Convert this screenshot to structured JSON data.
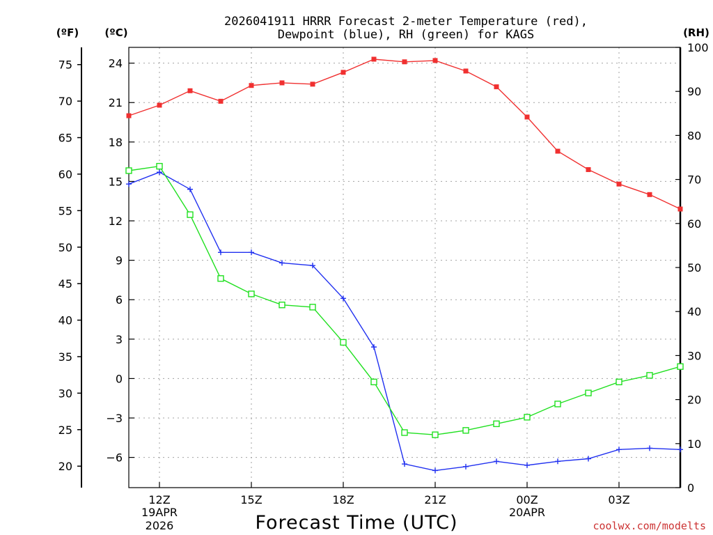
{
  "chart_data": {
    "type": "line",
    "title_line1": "2026041911 HRRR Forecast 2-meter Temperature (red),",
    "title_line2": "Dewpoint (blue), RH (green) for KAGS",
    "xlabel": "Forecast Time (UTC)",
    "watermark": "coolwx.com/modelts",
    "unit_labels": {
      "fahrenheit": "(ºF)",
      "celsius": "(ºC)",
      "rh": "(RH)"
    },
    "x_range_hours": [
      11,
      29
    ],
    "x_ticks": [
      {
        "hour": 12,
        "label": "12Z",
        "sub1": "19APR",
        "sub2": "2026"
      },
      {
        "hour": 15,
        "label": "15Z",
        "sub1": "",
        "sub2": ""
      },
      {
        "hour": 18,
        "label": "18Z",
        "sub1": "",
        "sub2": ""
      },
      {
        "hour": 21,
        "label": "21Z",
        "sub1": "",
        "sub2": ""
      },
      {
        "hour": 24,
        "label": "00Z",
        "sub1": "20APR",
        "sub2": ""
      },
      {
        "hour": 27,
        "label": "03Z",
        "sub1": "",
        "sub2": ""
      }
    ],
    "celsius_axis": {
      "range": [
        -8.3,
        25.2
      ],
      "ticks": [
        "24",
        "21",
        "18",
        "15",
        "12",
        "9",
        "6",
        "3",
        "0",
        "−3",
        "−6"
      ],
      "tick_values": [
        24,
        21,
        18,
        15,
        12,
        9,
        6,
        3,
        0,
        -3,
        -6
      ]
    },
    "fahrenheit_axis": {
      "ticks": [
        "75",
        "70",
        "65",
        "60",
        "55",
        "50",
        "45",
        "40",
        "35",
        "30",
        "25",
        "20"
      ],
      "tick_values": [
        75,
        70,
        65,
        60,
        55,
        50,
        45,
        40,
        35,
        30,
        25,
        20
      ]
    },
    "rh_axis": {
      "range": [
        0,
        100
      ],
      "ticks": [
        "100",
        "90",
        "80",
        "70",
        "60",
        "50",
        "40",
        "30",
        "20",
        "10",
        "0"
      ],
      "tick_values": [
        100,
        90,
        80,
        70,
        60,
        50,
        40,
        30,
        20,
        10,
        0
      ]
    },
    "hours": [
      11,
      12,
      13,
      14,
      15,
      16,
      17,
      18,
      19,
      20,
      21,
      22,
      23,
      24,
      25,
      26,
      27,
      28,
      29
    ],
    "series": [
      {
        "name": "Temperature",
        "unit": "°C",
        "color": "#f03030",
        "marker": "filled-square",
        "values": [
          20.0,
          20.8,
          21.9,
          21.1,
          22.3,
          22.5,
          22.4,
          23.3,
          24.3,
          24.1,
          24.2,
          23.4,
          22.2,
          19.9,
          17.3,
          15.9,
          14.8,
          14.0,
          12.9
        ]
      },
      {
        "name": "Dewpoint",
        "unit": "°C",
        "color": "#2030f0",
        "marker": "plus",
        "values": [
          14.8,
          15.7,
          14.4,
          9.6,
          9.6,
          8.8,
          8.6,
          6.1,
          2.4,
          -6.5,
          -7.0,
          -6.7,
          -6.3,
          -6.6,
          -6.3,
          -6.1,
          -5.4,
          -5.3,
          -5.4
        ]
      },
      {
        "name": "RH",
        "unit": "%",
        "color": "#20e020",
        "marker": "open-square",
        "values": [
          72,
          73,
          62,
          47.5,
          44,
          41.5,
          41,
          33,
          24,
          12.5,
          12,
          13,
          14.5,
          16,
          19,
          21.5,
          24,
          25.5,
          27.5
        ]
      }
    ]
  }
}
